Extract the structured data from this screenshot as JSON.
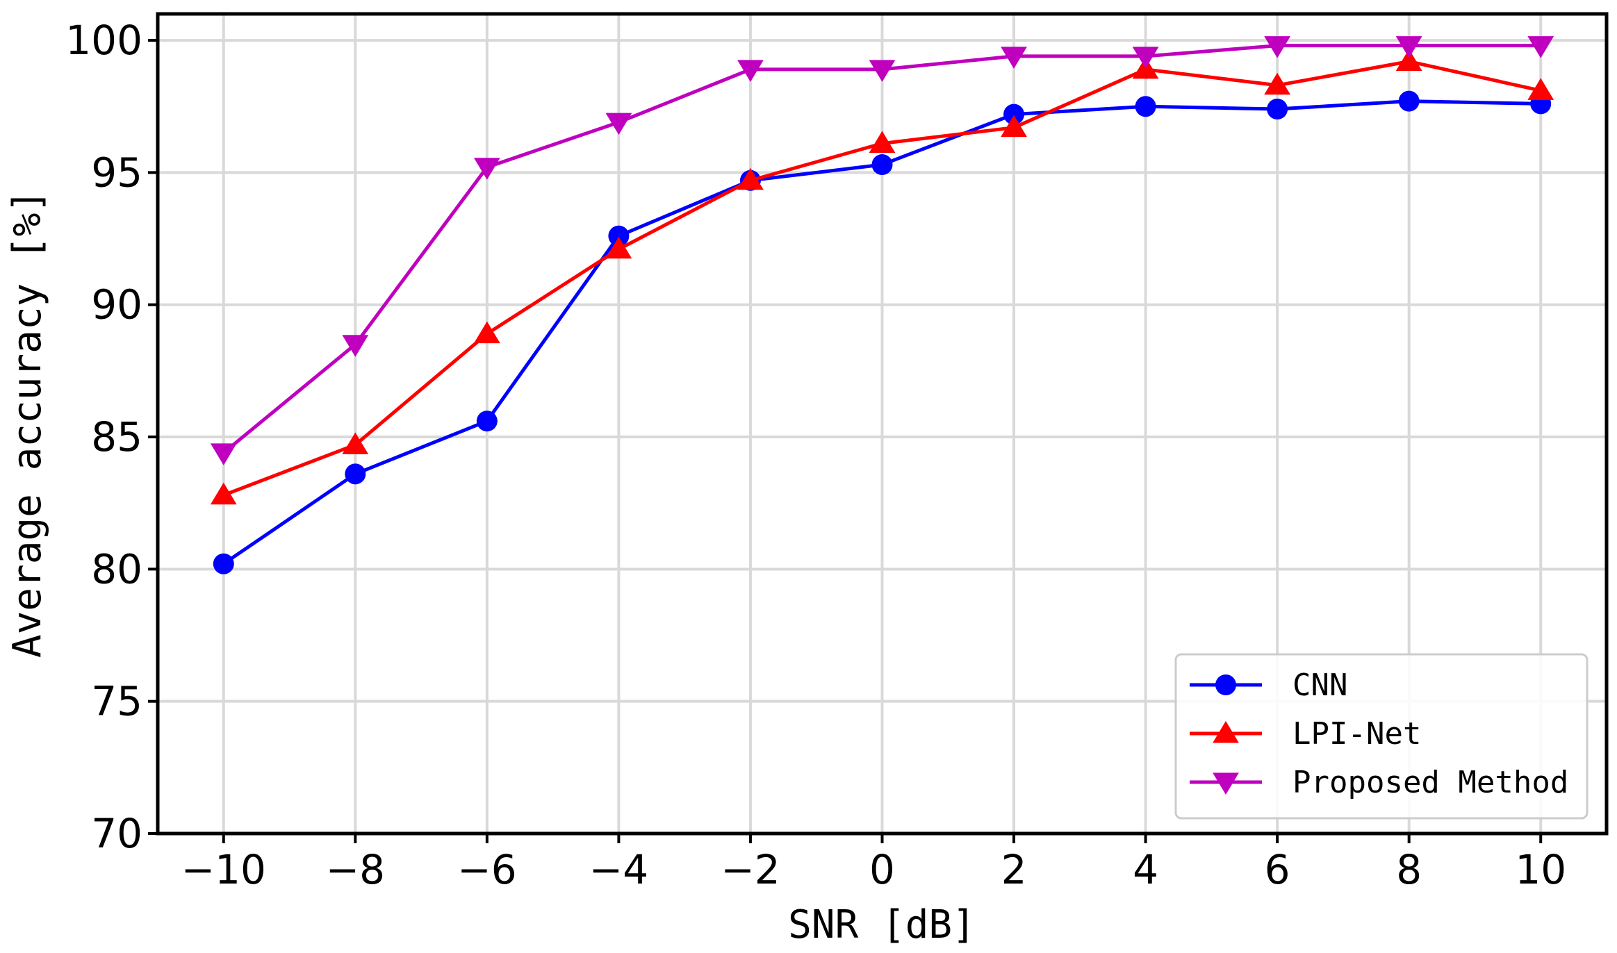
{
  "chart_data": {
    "type": "line",
    "title": "",
    "xlabel": "SNR [dB]",
    "ylabel": "Average accuracy [%]",
    "x": [
      -10,
      -8,
      -6,
      -4,
      -2,
      0,
      2,
      4,
      6,
      8,
      10
    ],
    "x_tick_labels": [
      "−10",
      "−8",
      "−6",
      "−4",
      "−2",
      "0",
      "2",
      "4",
      "6",
      "8",
      "10"
    ],
    "y_tick_labels": [
      "70",
      "75",
      "80",
      "85",
      "90",
      "95",
      "100"
    ],
    "xlim": [
      -11,
      11
    ],
    "ylim": [
      70,
      101
    ],
    "yticks": [
      70,
      75,
      80,
      85,
      90,
      95,
      100
    ],
    "grid": true,
    "legend_position": "bottom-right",
    "series": [
      {
        "name": "CNN",
        "color": "#0000ff",
        "marker": "circle",
        "values": [
          80.2,
          83.6,
          85.6,
          92.6,
          94.7,
          95.3,
          97.2,
          97.5,
          97.4,
          97.7,
          97.6
        ]
      },
      {
        "name": "LPI-Net",
        "color": "#ff0000",
        "marker": "triangle-up",
        "values": [
          82.8,
          84.7,
          88.9,
          92.1,
          94.7,
          96.1,
          96.7,
          98.9,
          98.3,
          99.2,
          98.1
        ]
      },
      {
        "name": "Proposed Method",
        "color": "#bf00bf",
        "marker": "triangle-down",
        "values": [
          84.4,
          88.5,
          95.2,
          96.9,
          98.9,
          98.9,
          99.4,
          99.4,
          99.8,
          99.8,
          99.8
        ]
      }
    ]
  }
}
